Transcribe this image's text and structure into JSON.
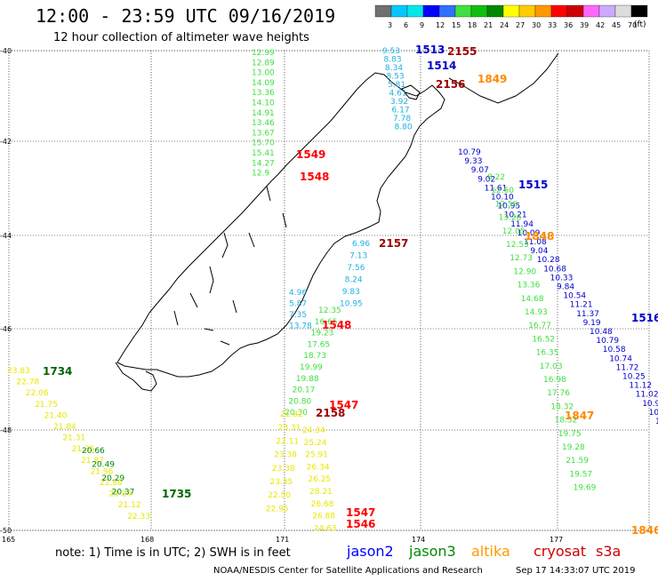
{
  "title": "12:00 - 23:59 UTC 09/16/2019",
  "subtitle": "12 hour collection of altimeter wave heights",
  "note": "note: 1) Time is in UTC; 2) SWH is in feet",
  "footer": "NOAA/NESDIS Center for Satellite Applications and Research",
  "footer_time": "Sep 17 14:33:07 UTC 2019",
  "legend": {
    "unit": "(ft)",
    "labels": [
      "3",
      "6",
      "9",
      "12",
      "15",
      "18",
      "21",
      "24",
      "27",
      "30",
      "33",
      "36",
      "39",
      "42",
      "45",
      "70"
    ],
    "colors": [
      "#707070",
      "#00c8ff",
      "#00e8e8",
      "#0000ff",
      "#3070ff",
      "#40e040",
      "#10c010",
      "#008800",
      "#ffff00",
      "#ffcc00",
      "#ff9900",
      "#ff0000",
      "#cc0000",
      "#ff66ff",
      "#ccaaff",
      "#dddddd",
      "#000000"
    ]
  },
  "axes": {
    "lat_labels": [
      "-40",
      "-42",
      "-44",
      "-46",
      "-48",
      "-50"
    ],
    "lon_labels": [
      "165",
      "168",
      "171",
      "174",
      "177"
    ]
  },
  "satellites": [
    {
      "name": "jason2",
      "color": "#0000ff"
    },
    {
      "name": "jason3",
      "color": "#008800"
    },
    {
      "name": "altika",
      "color": "#ff9900"
    },
    {
      "name": "cryosat",
      "color": "#cc0000"
    },
    {
      "name": "s3a",
      "color": "#cc0000"
    }
  ],
  "time_labels": [
    {
      "t": "1513",
      "c": "#0000cc"
    },
    {
      "t": "2155",
      "c": "#990000"
    },
    {
      "t": "1514",
      "c": "#0000cc"
    },
    {
      "t": "1849",
      "c": "#ff8800"
    },
    {
      "t": "2156",
      "c": "#990000"
    },
    {
      "t": "1549",
      "c": "#ff0000"
    },
    {
      "t": "1548",
      "c": "#ff0000"
    },
    {
      "t": "1515",
      "c": "#0000cc"
    },
    {
      "t": "2157",
      "c": "#990000"
    },
    {
      "t": "1848",
      "c": "#ff8800"
    },
    {
      "t": "1516",
      "c": "#0000cc"
    },
    {
      "t": "1548",
      "c": "#ff0000"
    },
    {
      "t": "1734",
      "c": "#006600"
    },
    {
      "t": "1547",
      "c": "#ff0000"
    },
    {
      "t": "2158",
      "c": "#990000"
    },
    {
      "t": "1847",
      "c": "#ff8800"
    },
    {
      "t": "1735",
      "c": "#006600"
    },
    {
      "t": "1547",
      "c": "#ff0000"
    },
    {
      "t": "1546",
      "c": "#ff0000"
    },
    {
      "t": "1846",
      "c": "#ff8800"
    }
  ],
  "tracks": {
    "green_north": {
      "color": "#40e040",
      "values": [
        "12.99",
        "12.89",
        "13.00",
        "14.09",
        "13.36",
        "14.10",
        "14.91",
        "13.46",
        "13.67",
        "15.70",
        "15.41",
        "14.27",
        "12.9"
      ]
    },
    "cyan_top": {
      "color": "#20b0e0",
      "values": [
        "9.53",
        "8.83",
        "8.34",
        "8.53",
        "5.81",
        "4.61",
        "3.92",
        "6.17",
        "7.78",
        "8.80"
      ]
    },
    "blue_east": {
      "color": "#0000cc",
      "values": [
        "10.79",
        "9.33",
        "9.07",
        "9.02",
        "11.61",
        "10.10",
        "10.95",
        "10.21",
        "11.94",
        "10.09",
        "11.08",
        "9.04",
        "10.28",
        "10.68",
        "10.33",
        "9.84",
        "10.54",
        "11.21",
        "11.37",
        "9.19",
        "10.48",
        "10.79",
        "10.58",
        "10.74",
        "11.72",
        "10.25",
        "11.12",
        "11.02",
        "10.91",
        "10.74",
        "11.44",
        "11.0",
        "10"
      ]
    },
    "green_east": {
      "color": "#40e040",
      "values": [
        "8.22",
        "12.60",
        "12.56",
        "13.26",
        "12.05",
        "12.53",
        "12.73",
        "12.90",
        "13.36",
        "14.68",
        "14.93",
        "16.77",
        "16.52",
        "16.35",
        "17.03",
        "16.98",
        "17.76",
        "18.32",
        "18.32",
        "19.75",
        "19.28",
        "21.59",
        "19.57",
        "19.69"
      ]
    },
    "cyan_mid": {
      "color": "#20b0e0",
      "values": [
        "6.96",
        "7.13",
        "7.56",
        "8.24",
        "9.83",
        "10.95"
      ]
    },
    "cyan_mid2": {
      "color": "#20b0e0",
      "values": [
        "4.96",
        "5.87",
        "7.35",
        "13.78"
      ]
    },
    "green_mid": {
      "color": "#40e040",
      "values": [
        "12.35",
        "16.65",
        "19.23",
        "17.65",
        "18.73",
        "19.99",
        "19.88",
        "20.17",
        "20.80",
        "20.30"
      ]
    },
    "yellow_mid": {
      "color": "#e8e800",
      "values": [
        "24.34",
        "25.24",
        "25.91",
        "26.34",
        "26.25",
        "28.21",
        "26.68",
        "26.88",
        "24.63"
      ]
    },
    "yellow_left": {
      "color": "#e8e800",
      "values": [
        "21.82",
        "23.31",
        "22.11",
        "23.38",
        "23.38",
        "23.35",
        "22.50",
        "22.95"
      ]
    },
    "yellow_sw": {
      "color": "#e8e800",
      "values": [
        "23.83",
        "22.78",
        "22.06",
        "21.75",
        "21.40",
        "21.84",
        "21.31",
        "21.35",
        "21.87",
        "21.96",
        "22.88",
        "21.24",
        "21.12",
        "22.33"
      ]
    },
    "green_sw": {
      "color": "#008800",
      "values": [
        "20.66",
        "20.49",
        "20.29",
        "20.37"
      ]
    }
  }
}
